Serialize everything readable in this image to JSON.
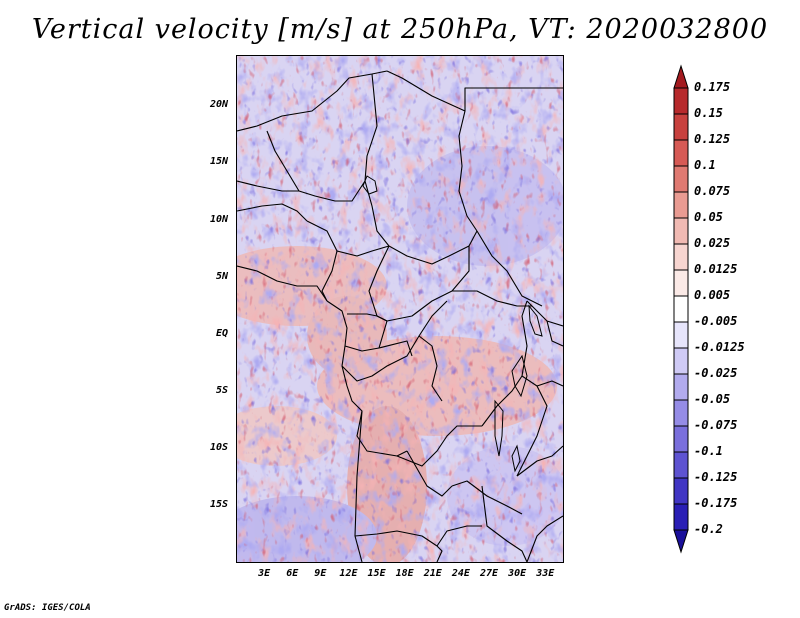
{
  "title": "Vertical velocity [m/s] at 250hPa, VT: 2020032800",
  "credit": "GrADS: IGES/COLA",
  "axes": {
    "lat_labels": [
      "20N",
      "15N",
      "10N",
      "5N",
      "EQ",
      "5S",
      "10S",
      "15S"
    ],
    "lat_values": [
      20,
      15,
      10,
      5,
      0,
      -5,
      -10,
      -15
    ],
    "lon_labels": [
      "3E",
      "6E",
      "9E",
      "12E",
      "15E",
      "18E",
      "21E",
      "24E",
      "27E",
      "30E",
      "33E"
    ],
    "lon_values": [
      3,
      6,
      9,
      12,
      15,
      18,
      21,
      24,
      27,
      30,
      33
    ],
    "lat_range": [
      -20,
      24.5
    ],
    "lon_range": [
      0,
      35
    ]
  },
  "colorbar": {
    "labels": [
      "0.175",
      "0.15",
      "0.125",
      "0.1",
      "0.075",
      "0.05",
      "0.025",
      "0.0125",
      "0.005",
      "-0.005",
      "-0.0125",
      "-0.025",
      "-0.05",
      "-0.075",
      "-0.1",
      "-0.125",
      "-0.175",
      "-0.2"
    ],
    "colors": [
      "#a31a1f",
      "#b72a2c",
      "#c8413e",
      "#d65a55",
      "#e07a72",
      "#e99b92",
      "#f1bab3",
      "#f7d5d0",
      "#fbeae7",
      "#ffffff",
      "#e7e5fb",
      "#cfcaf5",
      "#b2abee",
      "#958ce6",
      "#7a6fdc",
      "#5e53d1",
      "#4136c4",
      "#2a1fb5",
      "#1a0f9a"
    ]
  }
}
